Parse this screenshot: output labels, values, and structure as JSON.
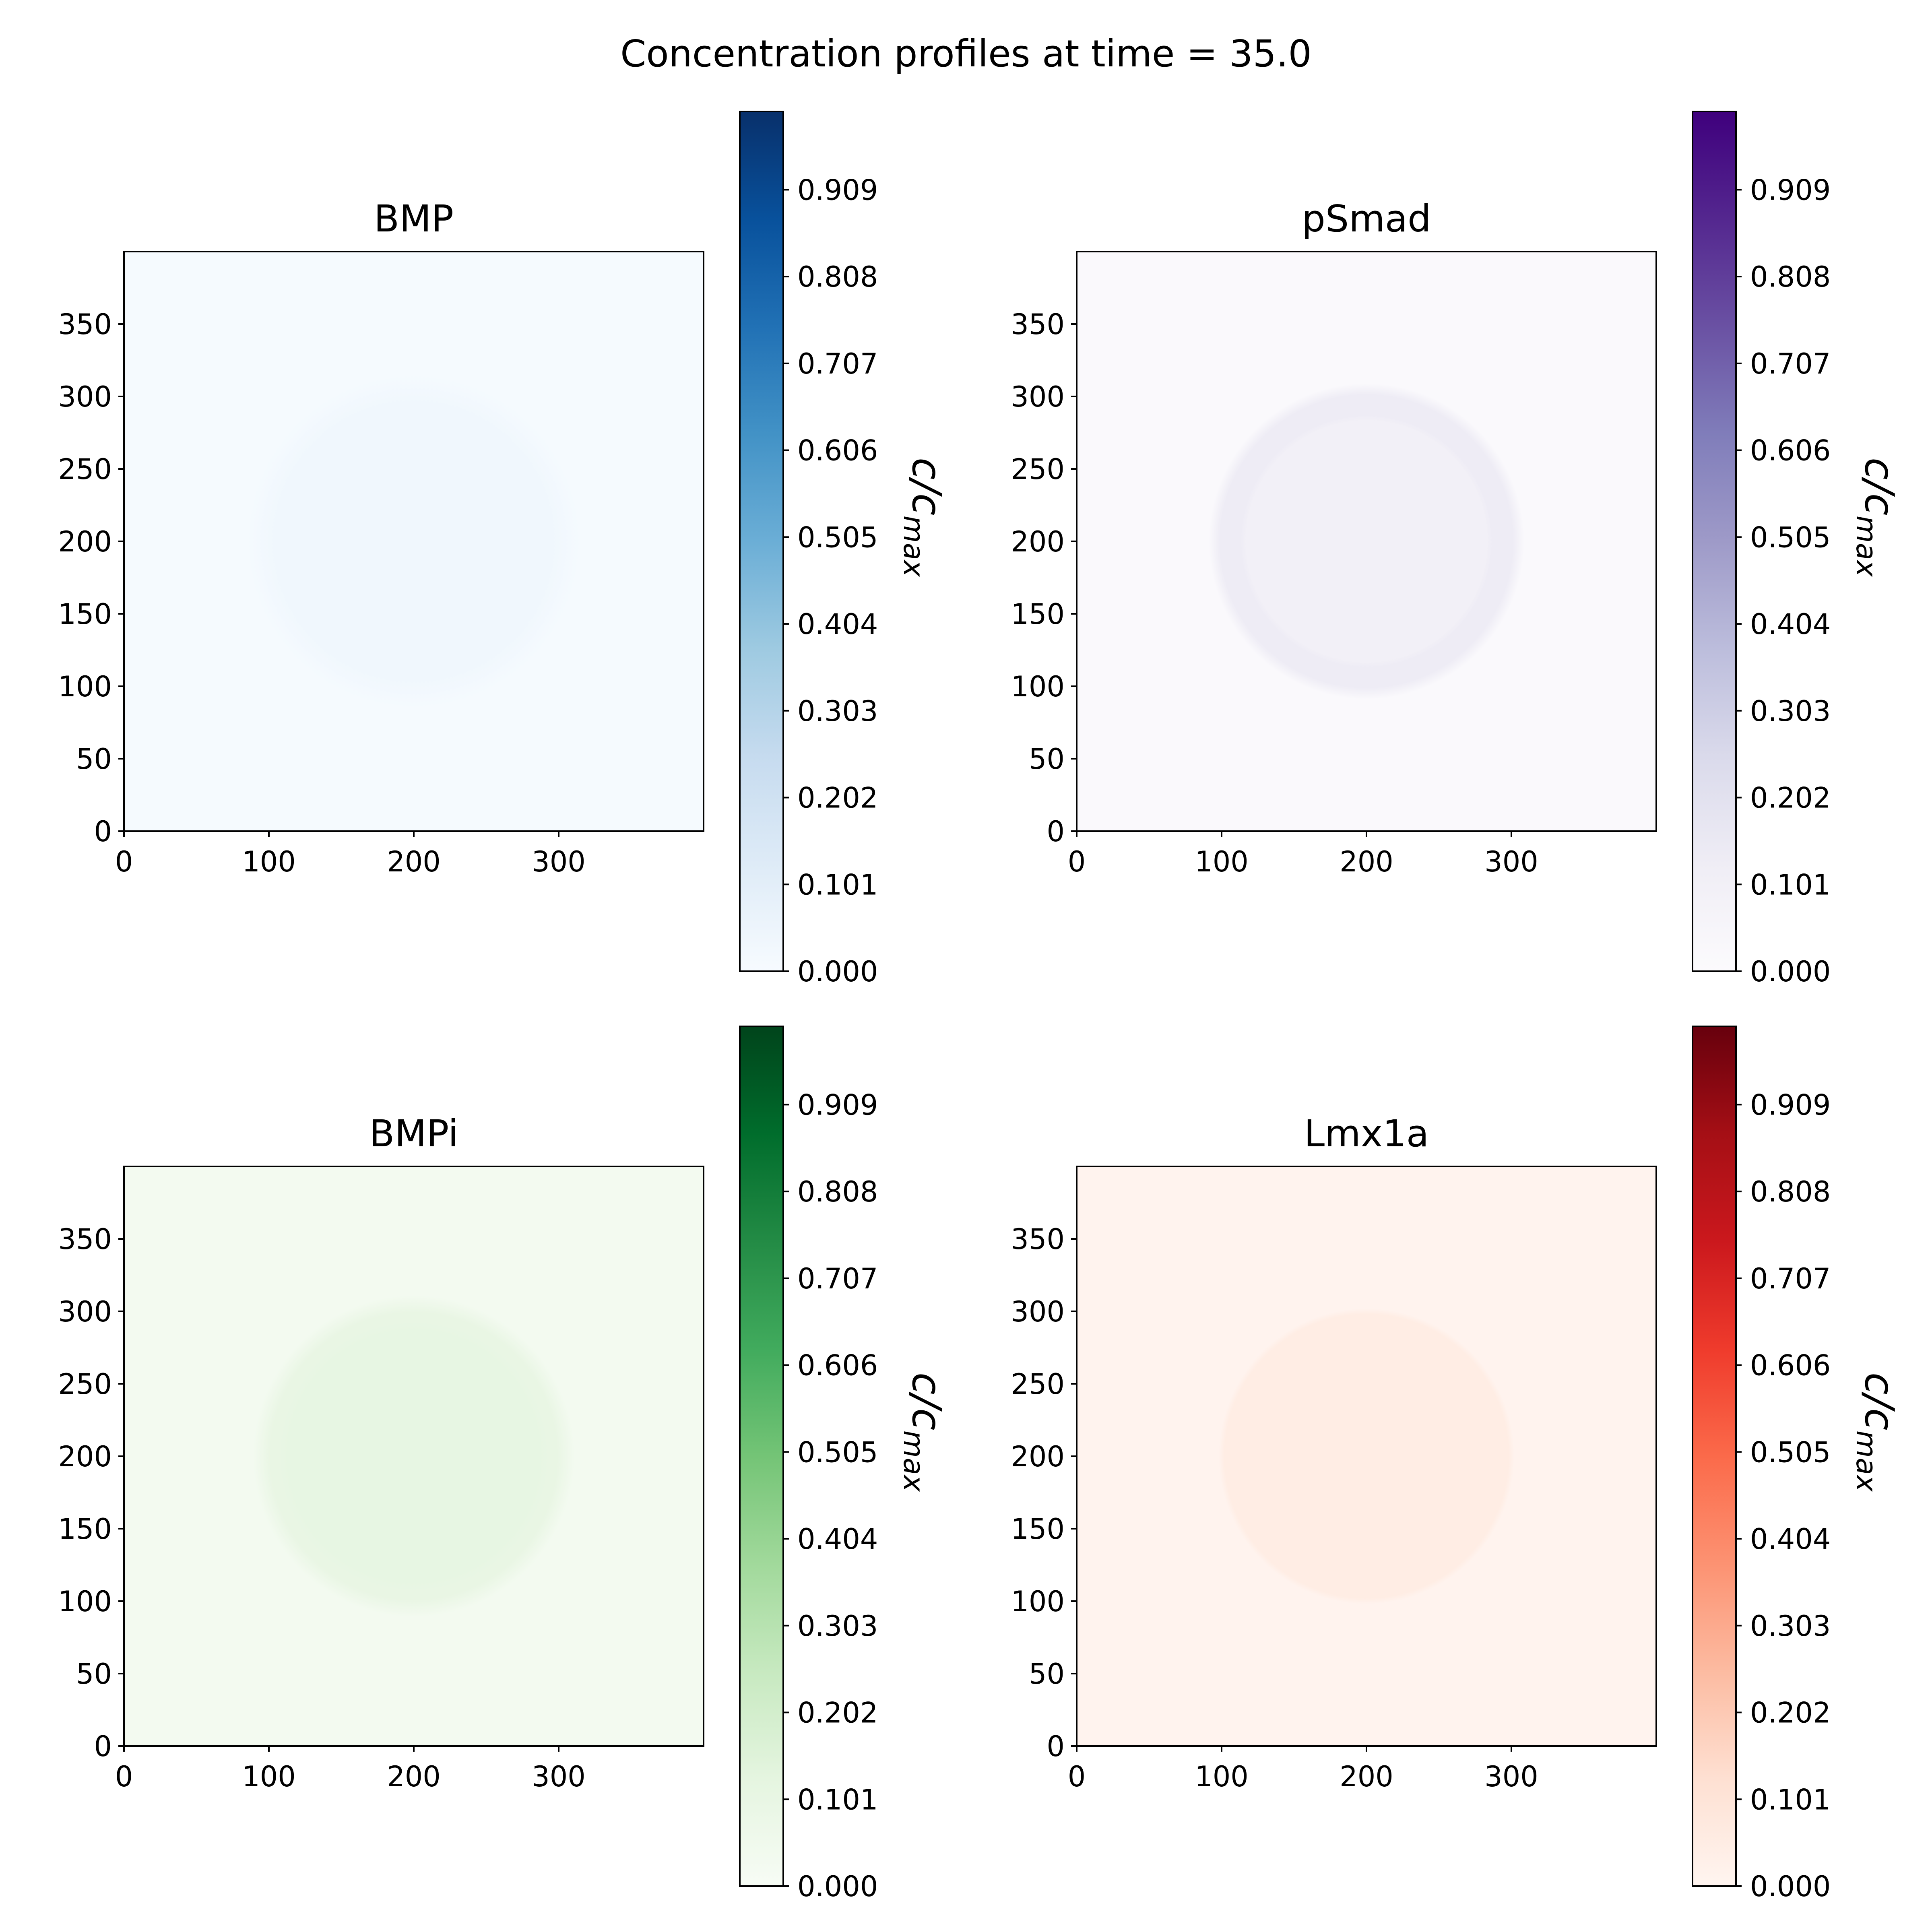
{
  "chart_data": {
    "title": "Concentration profiles at time = 35.0",
    "type": "heatmap",
    "panels": [
      {
        "title": "BMP",
        "colormap": "Blues",
        "cmap_stops": [
          "#f7fbff",
          "#deebf7",
          "#c6dbef",
          "#9ecae1",
          "#6baed6",
          "#4292c6",
          "#2171b5",
          "#08519c",
          "#08306b"
        ],
        "field": {
          "center": [
            200,
            200
          ],
          "inner_radius": 0,
          "outer_radius": 105,
          "edge": 10,
          "background": 0.01,
          "disc": 0.035,
          "ring": 0.035
        },
        "xlim": [
          0,
          400
        ],
        "ylim": [
          0,
          400
        ],
        "xticks": [
          0,
          100,
          200,
          300
        ],
        "yticks": [
          0,
          50,
          100,
          150,
          200,
          250,
          300,
          350
        ],
        "colorbar": {
          "label": "c/c",
          "label_sub": "max",
          "range": [
            0,
            1
          ],
          "ticks": [
            "0.000",
            "0.101",
            "0.202",
            "0.303",
            "0.404",
            "0.505",
            "0.606",
            "0.707",
            "0.808",
            "0.909"
          ]
        }
      },
      {
        "title": "pSmad",
        "colormap": "Purples",
        "cmap_stops": [
          "#fcfbfd",
          "#efedf5",
          "#dadaeb",
          "#bcbddc",
          "#9e9ac8",
          "#807dba",
          "#6a51a3",
          "#54278f",
          "#3f007d"
        ],
        "field": {
          "center": [
            200,
            200
          ],
          "inner_radius": 85,
          "outer_radius": 105,
          "edge": 4,
          "background": 0.02,
          "disc": 0.1,
          "ring": 0.13
        },
        "xlim": [
          0,
          400
        ],
        "ylim": [
          0,
          400
        ],
        "xticks": [
          0,
          100,
          200,
          300
        ],
        "yticks": [
          0,
          50,
          100,
          150,
          200,
          250,
          300,
          350
        ],
        "colorbar": {
          "label": "c/c",
          "label_sub": "max",
          "range": [
            0,
            1
          ],
          "ticks": [
            "0.000",
            "0.101",
            "0.202",
            "0.303",
            "0.404",
            "0.505",
            "0.606",
            "0.707",
            "0.808",
            "0.909"
          ]
        }
      },
      {
        "title": "BMPi",
        "colormap": "Greens",
        "cmap_stops": [
          "#f7fcf5",
          "#e5f5e0",
          "#c7e9c0",
          "#a1d99b",
          "#74c476",
          "#41ab5d",
          "#238b45",
          "#006d2c",
          "#00441b"
        ],
        "field": {
          "center": [
            200,
            200
          ],
          "inner_radius": 90,
          "outer_radius": 105,
          "edge": 6,
          "background": 0.03,
          "disc": 0.11,
          "ring": 0.1
        },
        "xlim": [
          0,
          400
        ],
        "ylim": [
          0,
          400
        ],
        "xticks": [
          0,
          100,
          200,
          300
        ],
        "yticks": [
          0,
          50,
          100,
          150,
          200,
          250,
          300,
          350
        ],
        "colorbar": {
          "label": "c/c",
          "label_sub": "max",
          "range": [
            0,
            1
          ],
          "ticks": [
            "0.000",
            "0.101",
            "0.202",
            "0.303",
            "0.404",
            "0.505",
            "0.606",
            "0.707",
            "0.808",
            "0.909"
          ]
        }
      },
      {
        "title": "Lmx1a",
        "colormap": "Reds",
        "cmap_stops": [
          "#fff5f0",
          "#fee0d2",
          "#fcbba1",
          "#fc9272",
          "#fb6a4a",
          "#ef3b2c",
          "#cb181d",
          "#a50f15",
          "#67000d"
        ],
        "field": {
          "center": [
            200,
            200
          ],
          "inner_radius": 0,
          "outer_radius": 100,
          "edge": 2,
          "background": 0.01,
          "disc": 0.05,
          "ring": 0.05
        },
        "xlim": [
          0,
          400
        ],
        "ylim": [
          0,
          400
        ],
        "xticks": [
          0,
          100,
          200,
          300
        ],
        "yticks": [
          0,
          50,
          100,
          150,
          200,
          250,
          300,
          350
        ],
        "colorbar": {
          "label": "c/c",
          "label_sub": "max",
          "range": [
            0,
            1
          ],
          "ticks": [
            "0.000",
            "0.101",
            "0.202",
            "0.303",
            "0.404",
            "0.505",
            "0.606",
            "0.707",
            "0.808",
            "0.909"
          ]
        }
      }
    ]
  }
}
